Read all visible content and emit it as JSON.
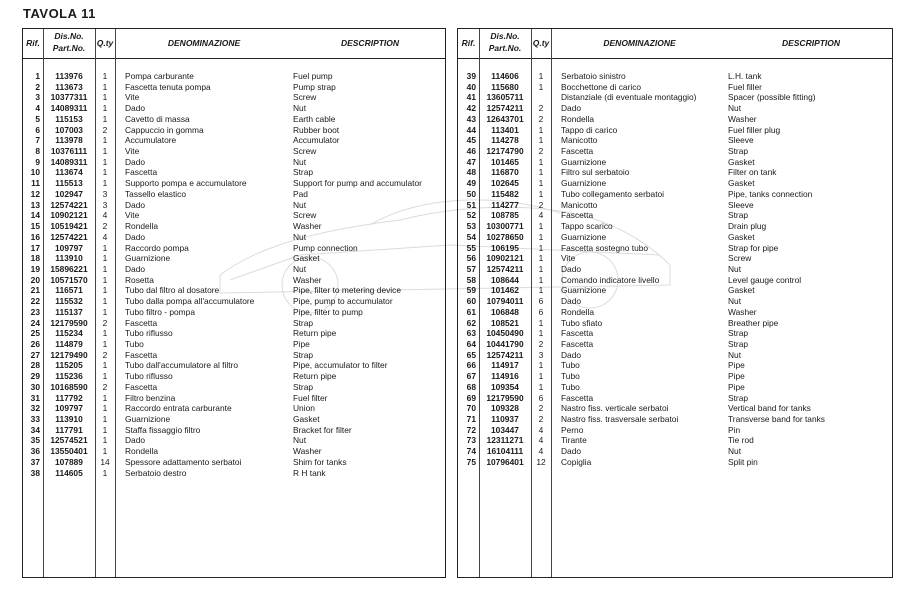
{
  "title": "TAVOLA 11",
  "headers": {
    "rif": "Rif.",
    "partno_1": "Dis.No.",
    "partno_2": "Part.No.",
    "qty": "Q.ty",
    "denominazione": "DENOMINAZIONE",
    "description": "DESCRIPTION"
  },
  "left_rows": [
    [
      "1",
      "113976",
      "1",
      "Pompa carburante",
      "Fuel pump"
    ],
    [
      "2",
      "113673",
      "1",
      "Fascetta tenuta pompa",
      "Pump strap"
    ],
    [
      "3",
      "10377311",
      "1",
      "Vite",
      "Screw"
    ],
    [
      "4",
      "14089311",
      "1",
      "Dado",
      "Nut"
    ],
    [
      "5",
      "115153",
      "1",
      "Cavetto di massa",
      "Earth cable"
    ],
    [
      "6",
      "107003",
      "2",
      "Cappuccio in gomma",
      "Rubber boot"
    ],
    [
      "7",
      "113978",
      "1",
      "Accumulatore",
      "Accumulator"
    ],
    [
      "8",
      "10376111",
      "1",
      "Vite",
      "Screw"
    ],
    [
      "9",
      "14089311",
      "1",
      "Dado",
      "Nut"
    ],
    [
      "10",
      "113674",
      "1",
      "Fascetta",
      "Strap"
    ],
    [
      "11",
      "115513",
      "1",
      "Supporto pompa e accumulatore",
      "Support for pump and accumulator"
    ],
    [
      "12",
      "102947",
      "3",
      "Tassello elastico",
      "Pad"
    ],
    [
      "13",
      "12574221",
      "3",
      "Dado",
      "Nut"
    ],
    [
      "14",
      "10902121",
      "4",
      "Vite",
      "Screw"
    ],
    [
      "15",
      "10519421",
      "2",
      "Rondella",
      "Washer"
    ],
    [
      "16",
      "12574221",
      "4",
      "Dado",
      "Nut"
    ],
    [
      "17",
      "109797",
      "1",
      "Raccordo pompa",
      "Pump connection"
    ],
    [
      "18",
      "113910",
      "1",
      "Guarnizione",
      "Gasket"
    ],
    [
      "19",
      "15896221",
      "1",
      "Dado",
      "Nut"
    ],
    [
      "20",
      "10571570",
      "1",
      "Rosetta",
      "Washer"
    ],
    [
      "21",
      "116571",
      "1",
      "Tubo dal filtro al dosatore",
      "Pipe, filter to metering device"
    ],
    [
      "22",
      "115532",
      "1",
      "Tubo dalla pompa all'accumulatore",
      "Pipe, pump to accumulator"
    ],
    [
      "23",
      "115137",
      "1",
      "Tubo filtro - pompa",
      "Pipe, filter to pump"
    ],
    [
      "24",
      "12179590",
      "2",
      "Fascetta",
      "Strap"
    ],
    [
      "25",
      "115234",
      "1",
      "Tubo riflusso",
      "Return pipe"
    ],
    [
      "26",
      "114879",
      "1",
      "Tubo",
      "Pipe"
    ],
    [
      "27",
      "12179490",
      "2",
      "Fascetta",
      "Strap"
    ],
    [
      "28",
      "115205",
      "1",
      "Tubo dall'accumulatore al filtro",
      "Pipe, accumulator to filter"
    ],
    [
      "29",
      "115236",
      "1",
      "Tubo riflusso",
      "Return pipe"
    ],
    [
      "30",
      "10168590",
      "2",
      "Fascetta",
      "Strap"
    ],
    [
      "31",
      "117792",
      "1",
      "Filtro benzina",
      "Fuel filter"
    ],
    [
      "32",
      "109797",
      "1",
      "Raccordo entrata carburante",
      "Union"
    ],
    [
      "33",
      "113910",
      "1",
      "Guarnizione",
      "Gasket"
    ],
    [
      "34",
      "117791",
      "1",
      "Staffa fissaggio filtro",
      "Bracket for filter"
    ],
    [
      "35",
      "12574521",
      "1",
      "Dado",
      "Nut"
    ],
    [
      "36",
      "13550401",
      "1",
      "Rondella",
      "Washer"
    ],
    [
      "37",
      "107889",
      "14",
      "Spessore adattamento serbatoi",
      "Shim for tanks"
    ],
    [
      "38",
      "114605",
      "1",
      "Serbatoio destro",
      "R H  tank"
    ]
  ],
  "right_rows": [
    [
      "39",
      "114606",
      "1",
      "Serbatoio sinistro",
      "L.H. tank"
    ],
    [
      "40",
      "115680",
      "1",
      "Bocchettone di carico",
      "Fuel filler"
    ],
    [
      "41",
      "13605711",
      "",
      "Distanziale (di eventuale montaggio)",
      "Spacer (possible fitting)"
    ],
    [
      "42",
      "12574211",
      "2",
      "Dado",
      "Nut"
    ],
    [
      "43",
      "12643701",
      "2",
      "Rondella",
      "Washer"
    ],
    [
      "44",
      "113401",
      "1",
      "Tappo di carico",
      "Fuel filler plug"
    ],
    [
      "45",
      "114278",
      "1",
      "Manicotto",
      "Sleeve"
    ],
    [
      "46",
      "12174790",
      "2",
      "Fascetta",
      "Strap"
    ],
    [
      "47",
      "101465",
      "1",
      "Guarnizione",
      "Gasket"
    ],
    [
      "48",
      "116870",
      "1",
      "Filtro sul serbatoio",
      "Filter on tank"
    ],
    [
      "49",
      "102645",
      "1",
      "Guarnizione",
      "Gasket"
    ],
    [
      "50",
      "115482",
      "1",
      "Tubo collegamento serbatoi",
      "Pipe, tanks connection"
    ],
    [
      "51",
      "114277",
      "2",
      "Manicotto",
      "Sleeve"
    ],
    [
      "52",
      "108785",
      "4",
      "Fascetta",
      "Strap"
    ],
    [
      "53",
      "10300771",
      "1",
      "Tappo scarico",
      "Drain plug"
    ],
    [
      "54",
      "10278650",
      "1",
      "Guarnizione",
      "Gasket"
    ],
    [
      "55",
      "106195",
      "1",
      "Fascetta sostegno tubo",
      "Strap for pipe"
    ],
    [
      "56",
      "10902121",
      "1",
      "Vite",
      "Screw"
    ],
    [
      "57",
      "12574211",
      "1",
      "Dado",
      "Nut"
    ],
    [
      "58",
      "108644",
      "1",
      "Comando indicatore livello",
      "Level gauge control"
    ],
    [
      "59",
      "101462",
      "1",
      "Guarnizione",
      "Gasket"
    ],
    [
      "60",
      "10794011",
      "6",
      "Dado",
      "Nut"
    ],
    [
      "61",
      "106848",
      "6",
      "Rondella",
      "Washer"
    ],
    [
      "62",
      "108521",
      "1",
      "Tubo sfiato",
      "Breather pipe"
    ],
    [
      "63",
      "10450490",
      "1",
      "Fascetta",
      "Strap"
    ],
    [
      "64",
      "10441790",
      "2",
      "Fascetta",
      "Strap"
    ],
    [
      "65",
      "12574211",
      "3",
      "Dado",
      "Nut"
    ],
    [
      "66",
      "114917",
      "1",
      "Tubo",
      "Pipe"
    ],
    [
      "67",
      "114916",
      "1",
      "Tubo",
      "Pipe"
    ],
    [
      "68",
      "109354",
      "1",
      "Tubo",
      "Pipe"
    ],
    [
      "69",
      "12179590",
      "6",
      "Fascetta",
      "Strap"
    ],
    [
      "70",
      "109328",
      "2",
      "Nastro fiss. verticale serbatoi",
      "Vertical band for tanks"
    ],
    [
      "71",
      "110937",
      "2",
      "Nastro fiss. trasversale serbatoi",
      "Transverse band for tanks"
    ],
    [
      "72",
      "103447",
      "4",
      "Perno",
      "Pin"
    ],
    [
      "73",
      "12311271",
      "4",
      "Tirante",
      "Tie rod"
    ],
    [
      "74",
      "16104111",
      "4",
      "Dado",
      "Nut"
    ],
    [
      "75",
      "10796401",
      "12",
      "Copiglia",
      "Split pin"
    ]
  ]
}
